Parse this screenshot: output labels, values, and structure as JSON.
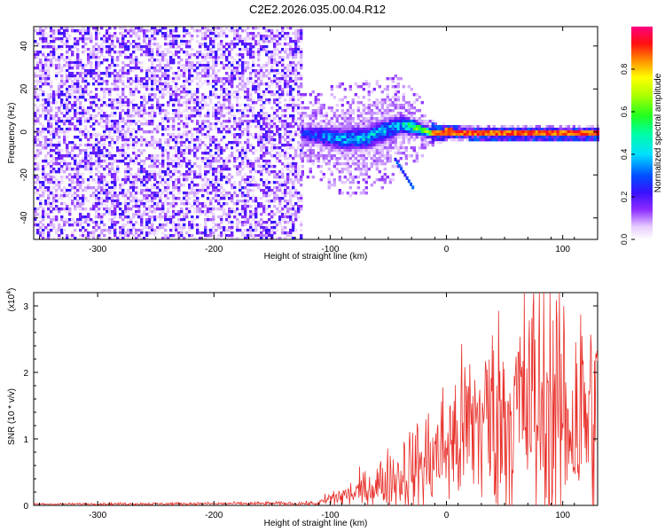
{
  "title": "C2E2.2026.035.00.04.R12",
  "chart_data": [
    {
      "type": "heatmap",
      "xlabel": "Height of straight line (km)",
      "ylabel": "Frequency (Hz)",
      "xlim": [
        -355,
        130
      ],
      "ylim": [
        -50,
        49
      ],
      "xticks": [
        -300,
        -200,
        -100,
        0,
        100
      ],
      "yticks": [
        -40,
        -20,
        0,
        20,
        40
      ],
      "noise_region_x": [
        -355,
        -125
      ],
      "signal_track": {
        "x": [
          -125,
          -110,
          -90,
          -70,
          -50,
          -40,
          -30,
          -20,
          -10,
          0,
          20,
          50,
          80,
          100,
          130
        ],
        "center_hz": [
          0,
          -1,
          -3,
          -2,
          2,
          4,
          3,
          1,
          0,
          0.5,
          0,
          0,
          0,
          0,
          0
        ],
        "width_hz": [
          10,
          10,
          12,
          12,
          12,
          10,
          8,
          6,
          4,
          3,
          3,
          3,
          3,
          3,
          3
        ],
        "peak_amplitude": [
          0.3,
          0.4,
          0.45,
          0.5,
          0.45,
          0.5,
          0.7,
          0.8,
          0.9,
          0.95,
          0.95,
          0.95,
          0.95,
          0.95,
          0.95
        ]
      },
      "side_streak": {
        "x": [
          -45,
          -30
        ],
        "hz": [
          -12,
          -25
        ]
      },
      "colorbar": {
        "label": "Normalized spectral amplitude",
        "range": [
          0,
          1
        ],
        "ticks": [
          "0.0",
          "0.2",
          "0.4",
          "0.6",
          "0.8"
        ],
        "tick_values": [
          0,
          0.2,
          0.4,
          0.6,
          0.8
        ]
      }
    },
    {
      "type": "line",
      "xlabel": "Height of straight line (km)",
      "ylabel": "SNR (10 * v/v)",
      "scale_label": "(x10",
      "scale_exp": "4",
      "scale_close": ")",
      "xlim": [
        -355,
        130
      ],
      "ylim": [
        0,
        3.2
      ],
      "xticks": [
        -300,
        -200,
        -100,
        0,
        100
      ],
      "yticks": [
        0,
        1,
        2,
        3
      ],
      "color": "#e8302a",
      "envelope": {
        "x": [
          -355,
          -110,
          -100,
          -80,
          -60,
          -40,
          -20,
          -10,
          0,
          10,
          20,
          30,
          50,
          70,
          80,
          100,
          120,
          130
        ],
        "mean": [
          0.02,
          0.03,
          0.1,
          0.18,
          0.3,
          0.45,
          0.6,
          0.75,
          0.9,
          1.0,
          1.2,
          1.3,
          1.35,
          1.5,
          1.45,
          1.4,
          1.35,
          1.3
        ],
        "spread": [
          0.01,
          0.02,
          0.1,
          0.15,
          0.25,
          0.4,
          0.55,
          0.6,
          0.7,
          0.8,
          0.9,
          1.0,
          1.1,
          1.3,
          1.5,
          1.4,
          1.3,
          1.2
        ]
      },
      "peak": {
        "x": 75,
        "y": 3.2
      }
    }
  ]
}
